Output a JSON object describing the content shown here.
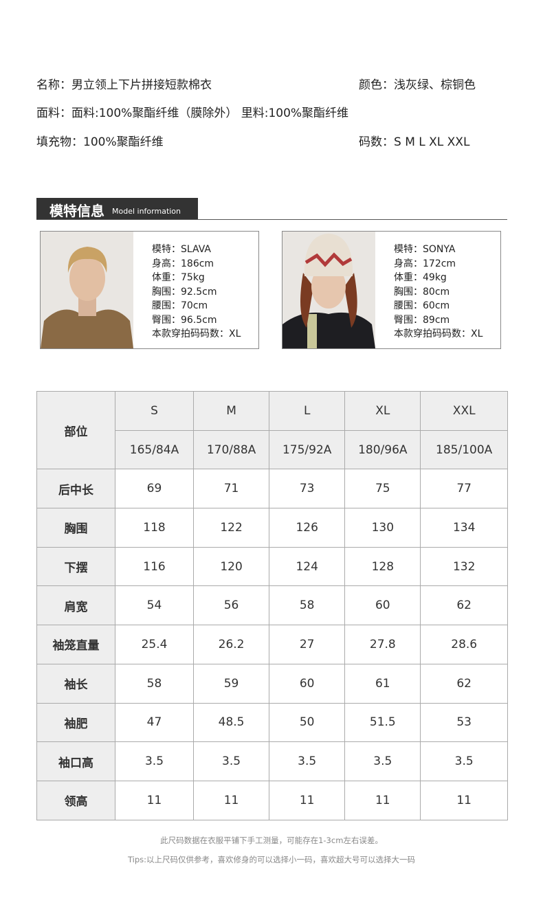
{
  "product": {
    "name": "名称：男立领上下片拼接短款棉衣",
    "color": "颜色：浅灰绿、棕铜色",
    "fabric": "面料：面料:100%聚酯纤维（膜除外） 里料:100%聚酯纤维",
    "filling": "填充物：100%聚酯纤维",
    "sizes": "码数：S M L XL XXL"
  },
  "section": {
    "title_cn": "模特信息",
    "title_en": "Model information"
  },
  "models": [
    {
      "lines": [
        "模特：SLAVA",
        "身高：186cm",
        "体重：75kg",
        "胸围：92.5cm",
        "腰围：70cm",
        "臀围：96.5cm",
        "本款穿拍码码数：XL"
      ]
    },
    {
      "lines": [
        "模特：SONYA",
        "身高：172cm",
        "体重：49kg",
        "胸围：80cm",
        "腰围：60cm",
        "臀围：89cm",
        "本款穿拍码码数：XL"
      ]
    }
  ],
  "size_table": {
    "corner": "部位",
    "sizes": [
      "S",
      "M",
      "L",
      "XL",
      "XXL"
    ],
    "specs": [
      "165/84A",
      "170/88A",
      "175/92A",
      "180/96A",
      "185/100A"
    ],
    "rows": [
      {
        "label": "后中长",
        "values": [
          "69",
          "71",
          "73",
          "75",
          "77"
        ]
      },
      {
        "label": "胸围",
        "values": [
          "118",
          "122",
          "126",
          "130",
          "134"
        ]
      },
      {
        "label": "下摆",
        "values": [
          "116",
          "120",
          "124",
          "128",
          "132"
        ]
      },
      {
        "label": "肩宽",
        "values": [
          "54",
          "56",
          "58",
          "60",
          "62"
        ]
      },
      {
        "label": "袖笼直量",
        "values": [
          "25.4",
          "26.2",
          "27",
          "27.8",
          "28.6"
        ]
      },
      {
        "label": "袖长",
        "values": [
          "58",
          "59",
          "60",
          "61",
          "62"
        ]
      },
      {
        "label": "袖肥",
        "values": [
          "47",
          "48.5",
          "50",
          "51.5",
          "53"
        ]
      },
      {
        "label": "袖口高",
        "values": [
          "3.5",
          "3.5",
          "3.5",
          "3.5",
          "3.5"
        ]
      },
      {
        "label": "领高",
        "values": [
          "11",
          "11",
          "11",
          "11",
          "11"
        ]
      }
    ]
  },
  "notes": {
    "line1": "此尺码数据在衣服平铺下手工测量，可能存在1-3cm左右误差。",
    "line2": "Tips:以上尺码仅供参考，喜欢修身的可以选择小一码，喜欢超大号可以选择大一码"
  }
}
